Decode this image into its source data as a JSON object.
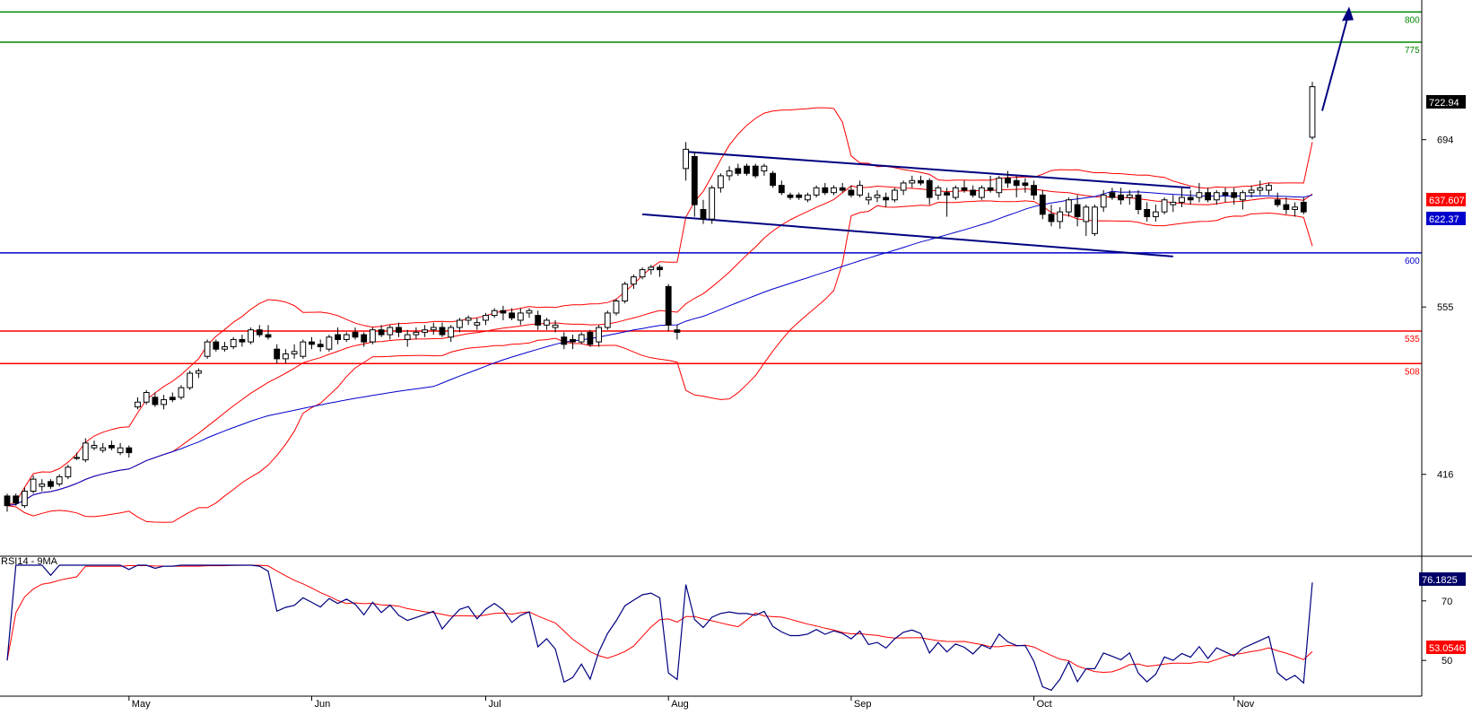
{
  "chart_data": {
    "type": "candlestick",
    "price_panel": {
      "y_axis_ticks": [
        "694",
        "555",
        "416"
      ],
      "y_tick_values": [
        694,
        555,
        416
      ],
      "ylim": [
        348,
        810
      ],
      "last_price_label": "722.94",
      "last_price": 722.94,
      "bb_mid_label": "637.607",
      "bb_mid_value": 637.607,
      "ma_label": "622.37",
      "ma_value": 622.37,
      "levels": [
        {
          "label": "800",
          "value": 800,
          "color": "#008800"
        },
        {
          "label": "775",
          "value": 775,
          "color": "#008800"
        },
        {
          "label": "600",
          "value": 600,
          "color": "#0000cc"
        },
        {
          "label": "535",
          "value": 535,
          "color": "#ff0000"
        },
        {
          "label": "508",
          "value": 508,
          "color": "#ff0000"
        }
      ],
      "ohlc": [
        [
          398,
          400,
          385,
          390
        ],
        [
          398,
          400,
          390,
          392
        ],
        [
          390,
          405,
          388,
          402
        ],
        [
          402,
          415,
          400,
          412
        ],
        [
          406,
          412,
          402,
          408
        ],
        [
          410,
          412,
          404,
          406
        ],
        [
          408,
          416,
          406,
          414
        ],
        [
          414,
          424,
          412,
          422
        ],
        [
          430,
          434,
          428,
          430
        ],
        [
          428,
          446,
          426,
          442
        ],
        [
          438,
          444,
          436,
          440
        ],
        [
          436,
          442,
          434,
          438
        ],
        [
          440,
          444,
          436,
          438
        ],
        [
          434,
          442,
          432,
          438
        ],
        [
          438,
          440,
          430,
          434
        ],
        [
          472,
          480,
          470,
          476
        ],
        [
          476,
          486,
          474,
          484
        ],
        [
          480,
          484,
          472,
          474
        ],
        [
          474,
          482,
          470,
          478
        ],
        [
          480,
          484,
          476,
          478
        ],
        [
          480,
          490,
          478,
          488
        ],
        [
          488,
          502,
          486,
          500
        ],
        [
          500,
          504,
          496,
          502
        ],
        [
          514,
          528,
          512,
          526
        ],
        [
          526,
          528,
          518,
          520
        ],
        [
          520,
          526,
          518,
          522
        ],
        [
          522,
          530,
          520,
          528
        ],
        [
          528,
          532,
          522,
          526
        ],
        [
          526,
          538,
          524,
          536
        ],
        [
          536,
          540,
          530,
          532
        ],
        [
          532,
          540,
          528,
          530
        ],
        [
          520,
          524,
          508,
          512
        ],
        [
          512,
          520,
          508,
          516
        ],
        [
          516,
          524,
          512,
          518
        ],
        [
          514,
          528,
          512,
          526
        ],
        [
          526,
          530,
          520,
          524
        ],
        [
          524,
          528,
          518,
          522
        ],
        [
          520,
          532,
          518,
          530
        ],
        [
          532,
          538,
          524,
          528
        ],
        [
          528,
          534,
          526,
          532
        ],
        [
          534,
          538,
          528,
          530
        ],
        [
          532,
          534,
          522,
          526
        ],
        [
          526,
          538,
          524,
          536
        ],
        [
          536,
          540,
          530,
          532
        ],
        [
          532,
          540,
          528,
          538
        ],
        [
          538,
          542,
          530,
          534
        ],
        [
          528,
          536,
          522,
          532
        ],
        [
          532,
          538,
          528,
          534
        ],
        [
          534,
          540,
          530,
          536
        ],
        [
          536,
          542,
          532,
          538
        ],
        [
          538,
          542,
          530,
          532
        ],
        [
          530,
          540,
          526,
          538
        ],
        [
          538,
          546,
          534,
          544
        ],
        [
          544,
          548,
          540,
          546
        ],
        [
          540,
          546,
          536,
          542
        ],
        [
          544,
          550,
          540,
          548
        ],
        [
          548,
          554,
          546,
          552
        ],
        [
          552,
          556,
          544,
          550
        ],
        [
          550,
          554,
          544,
          546
        ],
        [
          544,
          554,
          540,
          550
        ],
        [
          550,
          554,
          546,
          552
        ],
        [
          548,
          552,
          536,
          540
        ],
        [
          540,
          546,
          536,
          544
        ],
        [
          538,
          544,
          534,
          540
        ],
        [
          530,
          534,
          520,
          524
        ],
        [
          528,
          532,
          520,
          526
        ],
        [
          526,
          534,
          524,
          532
        ],
        [
          534,
          536,
          522,
          524
        ],
        [
          526,
          540,
          522,
          538
        ],
        [
          538,
          552,
          536,
          550
        ],
        [
          550,
          562,
          548,
          560
        ],
        [
          560,
          576,
          558,
          574
        ],
        [
          574,
          582,
          570,
          580
        ],
        [
          580,
          588,
          578,
          586
        ],
        [
          586,
          590,
          582,
          588
        ],
        [
          588,
          590,
          580,
          586
        ],
        [
          572,
          574,
          535,
          540
        ],
        [
          536,
          540,
          528,
          534
        ],
        [
          670,
          692,
          660,
          686
        ],
        [
          680,
          684,
          630,
          640
        ],
        [
          636,
          644,
          624,
          628
        ],
        [
          628,
          656,
          624,
          654
        ],
        [
          654,
          666,
          650,
          664
        ],
        [
          664,
          672,
          660,
          668
        ],
        [
          670,
          674,
          664,
          666
        ],
        [
          672,
          674,
          664,
          666
        ],
        [
          672,
          674,
          662,
          664
        ],
        [
          668,
          674,
          664,
          672
        ],
        [
          666,
          668,
          654,
          656
        ],
        [
          656,
          660,
          648,
          650
        ],
        [
          648,
          650,
          644,
          646
        ],
        [
          648,
          650,
          644,
          646
        ],
        [
          644,
          650,
          642,
          648
        ],
        [
          648,
          656,
          646,
          654
        ],
        [
          654,
          658,
          648,
          650
        ],
        [
          650,
          656,
          648,
          654
        ],
        [
          654,
          658,
          650,
          652
        ],
        [
          652,
          656,
          646,
          648
        ],
        [
          648,
          660,
          646,
          656
        ],
        [
          644,
          650,
          640,
          646
        ],
        [
          646,
          652,
          642,
          648
        ],
        [
          646,
          650,
          638,
          644
        ],
        [
          644,
          654,
          642,
          652
        ],
        [
          652,
          660,
          648,
          658
        ],
        [
          658,
          664,
          654,
          660
        ],
        [
          660,
          664,
          656,
          658
        ],
        [
          660,
          662,
          640,
          646
        ],
        [
          648,
          656,
          644,
          654
        ],
        [
          650,
          654,
          630,
          648
        ],
        [
          646,
          656,
          644,
          654
        ],
        [
          654,
          660,
          650,
          652
        ],
        [
          652,
          656,
          646,
          648
        ],
        [
          646,
          656,
          644,
          654
        ],
        [
          654,
          664,
          650,
          652
        ],
        [
          650,
          664,
          646,
          662
        ],
        [
          662,
          668,
          654,
          658
        ],
        [
          660,
          664,
          646,
          656
        ],
        [
          658,
          662,
          650,
          656
        ],
        [
          656,
          660,
          644,
          648
        ],
        [
          648,
          652,
          628,
          632
        ],
        [
          632,
          640,
          622,
          626
        ],
        [
          626,
          638,
          620,
          634
        ],
        [
          634,
          646,
          630,
          644
        ],
        [
          640,
          648,
          622,
          630
        ],
        [
          626,
          640,
          614,
          638
        ],
        [
          616,
          640,
          614,
          638
        ],
        [
          638,
          652,
          634,
          648
        ],
        [
          650,
          654,
          644,
          646
        ],
        [
          648,
          654,
          640,
          644
        ],
        [
          646,
          652,
          640,
          648
        ],
        [
          648,
          652,
          632,
          636
        ],
        [
          636,
          642,
          626,
          630
        ],
        [
          630,
          640,
          626,
          634
        ],
        [
          634,
          646,
          632,
          644
        ],
        [
          640,
          648,
          634,
          642
        ],
        [
          642,
          654,
          638,
          646
        ],
        [
          646,
          652,
          640,
          644
        ],
        [
          646,
          658,
          642,
          650
        ],
        [
          650,
          654,
          642,
          644
        ],
        [
          644,
          652,
          640,
          650
        ],
        [
          650,
          654,
          642,
          648
        ],
        [
          650,
          654,
          640,
          646
        ],
        [
          644,
          652,
          636,
          650
        ],
        [
          650,
          656,
          646,
          652
        ],
        [
          652,
          660,
          648,
          654
        ],
        [
          652,
          658,
          648,
          656
        ],
        [
          644,
          650,
          638,
          640
        ],
        [
          640,
          646,
          632,
          636
        ],
        [
          636,
          642,
          630,
          638
        ],
        [
          642,
          646,
          632,
          634
        ],
        [
          696,
          742,
          694,
          738
        ]
      ]
    },
    "rsi_panel": {
      "title": "RSI14 - 9MA",
      "y_axis_ticks": [
        "70",
        "50"
      ],
      "y_tick_values": [
        70,
        50
      ],
      "ylim": [
        38,
        85
      ],
      "rsi_label": "76.1825",
      "rsi_value": 76.1825,
      "ma_label": "53.0546",
      "ma_value": 53.0546
    },
    "x_axis": {
      "ticks": [
        "May",
        "Jun",
        "Jul",
        "Aug",
        "Sep",
        "Oct",
        "Nov"
      ],
      "tick_index": [
        14,
        35,
        55,
        76,
        97,
        118,
        141
      ]
    },
    "legend": "none",
    "grid": false
  }
}
